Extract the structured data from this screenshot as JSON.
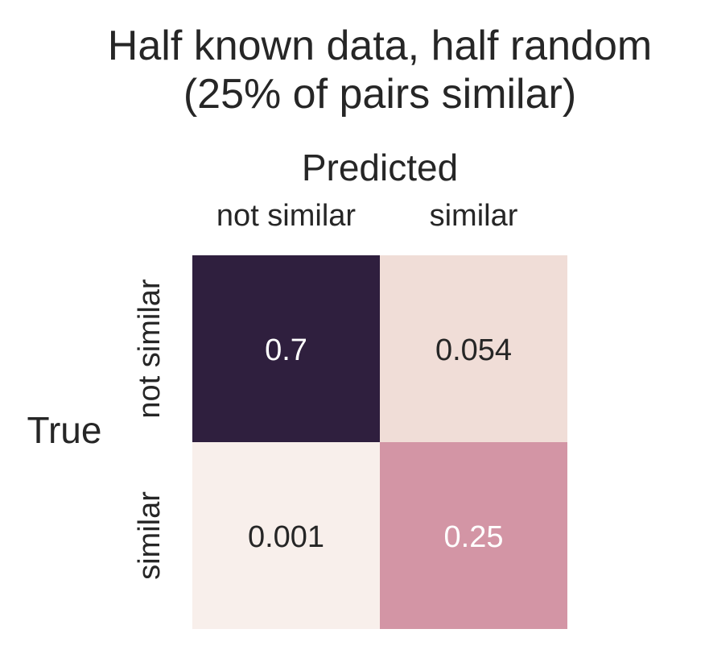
{
  "chart_data": {
    "type": "heatmap",
    "title_lines": [
      "Half known data, half random",
      "(25% of pairs similar)"
    ],
    "xlabel": "Predicted",
    "ylabel": "True",
    "x_categories": [
      "not similar",
      "similar"
    ],
    "y_categories": [
      "not similar",
      "similar"
    ],
    "cells": [
      {
        "row": 0,
        "col": 0,
        "label": "0.7",
        "value": 0.7,
        "color": "#2f1f3e",
        "text_color": "#ffffff"
      },
      {
        "row": 0,
        "col": 1,
        "label": "0.054",
        "value": 0.054,
        "color": "#f0ddd7",
        "text_color": "#262626"
      },
      {
        "row": 1,
        "col": 0,
        "label": "0.001",
        "value": 0.001,
        "color": "#f8efeb",
        "text_color": "#262626"
      },
      {
        "row": 1,
        "col": 1,
        "label": "0.25",
        "value": 0.25,
        "color": "#d395a5",
        "text_color": "#ffffff"
      }
    ],
    "colorbar": false
  }
}
